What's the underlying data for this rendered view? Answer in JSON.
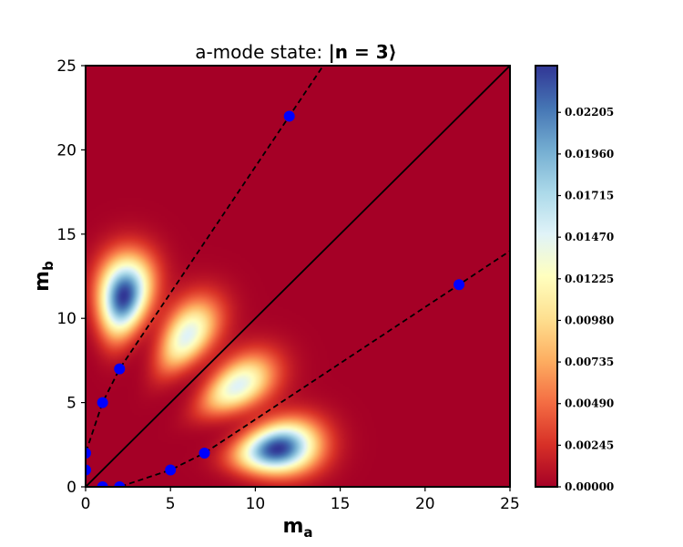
{
  "chart_data": {
    "type": "heatmap",
    "title_prefix": "a-mode state: ",
    "title_math": "|n = 3⟩",
    "xlabel": {
      "base": "m",
      "sub": "a"
    },
    "ylabel": {
      "base": "m",
      "sub": "b"
    },
    "xlim": [
      0,
      25
    ],
    "ylim": [
      0,
      25
    ],
    "x_ticks": [
      "0",
      "5",
      "10",
      "15",
      "20",
      "25"
    ],
    "y_ticks": [
      "0",
      "5",
      "10",
      "15",
      "20",
      "25"
    ],
    "colormap": "RdYlBu",
    "colorbar": {
      "min": 0.0,
      "max": 0.0248,
      "ticks": [
        "0.00000",
        "0.00245",
        "0.00490",
        "0.00735",
        "0.00980",
        "0.01225",
        "0.01470",
        "0.01715",
        "0.01960",
        "0.02205"
      ]
    },
    "n": 3,
    "diagonal_line": {
      "from": [
        0,
        0
      ],
      "to": [
        25,
        25
      ],
      "style": "solid"
    },
    "points_upper": [
      [
        0,
        1
      ],
      [
        0,
        2
      ],
      [
        1,
        5
      ],
      [
        2,
        7
      ],
      [
        12,
        22
      ]
    ],
    "points_lower": [
      [
        1,
        0
      ],
      [
        2,
        0
      ],
      [
        5,
        1
      ],
      [
        7,
        2
      ],
      [
        22,
        12
      ]
    ],
    "grid": false,
    "legend": "none"
  }
}
